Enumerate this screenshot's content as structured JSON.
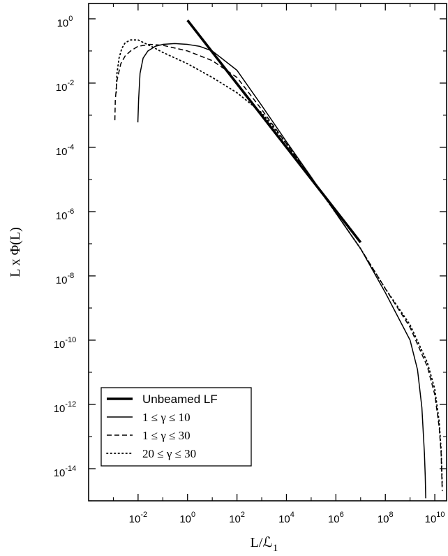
{
  "chart_data": {
    "type": "line",
    "title": "",
    "xlabel": "L/ℒ",
    "xlabel_subscript": "1",
    "ylabel": "L x Φ(L)",
    "x_scale": "log",
    "y_scale": "log",
    "xlim": [
      0.0001,
      30000000000.0
    ],
    "ylim": [
      1e-15,
      3
    ],
    "grid": false,
    "legend_position": "bottom-left",
    "x_ticks": [
      {
        "base": "10",
        "exp": "-2",
        "value": 0.01
      },
      {
        "base": "10",
        "exp": "0",
        "value": 1
      },
      {
        "base": "10",
        "exp": "2",
        "value": 100
      },
      {
        "base": "10",
        "exp": "4",
        "value": 10000
      },
      {
        "base": "10",
        "exp": "6",
        "value": 1000000
      },
      {
        "base": "10",
        "exp": "8",
        "value": 100000000
      },
      {
        "base": "10",
        "exp": "10",
        "value": 10000000000
      }
    ],
    "y_ticks": [
      {
        "base": "10",
        "exp": "0",
        "value": 1
      },
      {
        "base": "10",
        "exp": "-2",
        "value": 0.01
      },
      {
        "base": "10",
        "exp": "-4",
        "value": 0.0001
      },
      {
        "base": "10",
        "exp": "-6",
        "value": 1e-06
      },
      {
        "base": "10",
        "exp": "-8",
        "value": 1e-08
      },
      {
        "base": "10",
        "exp": "-10",
        "value": 1e-10
      },
      {
        "base": "10",
        "exp": "-12",
        "value": 1e-12
      },
      {
        "base": "10",
        "exp": "-14",
        "value": 1e-14
      }
    ],
    "series": [
      {
        "name": "Unbeamed LF",
        "style": "solid-thick",
        "color": "#000000",
        "x": [
          1,
          10000000
        ],
        "y": [
          0.9,
          1.1e-07
        ]
      },
      {
        "name": "1 ≤ γ ≤ 10",
        "style": "solid",
        "color": "#000000",
        "x": [
          0.0098,
          0.0105,
          0.012,
          0.016,
          0.025,
          0.05,
          0.1,
          0.3,
          1,
          3,
          10,
          100,
          1000,
          10000,
          100000,
          1000000,
          10000000,
          100000000,
          1000000000,
          2000000000,
          3000000000,
          3800000000,
          4100000000,
          4300000000
        ],
        "y": [
          0.0006,
          0.003,
          0.02,
          0.06,
          0.1,
          0.14,
          0.16,
          0.17,
          0.16,
          0.14,
          0.1,
          0.025,
          0.002,
          0.00015,
          1.2e-05,
          9e-07,
          7e-08,
          3e-09,
          1e-10,
          1.2e-11,
          8e-13,
          3e-14,
          6e-15,
          1.2e-15
        ]
      },
      {
        "name": "1 ≤ γ ≤ 30",
        "style": "dashed",
        "color": "#000000",
        "x": [
          0.00115,
          0.0012,
          0.0014,
          0.002,
          0.003,
          0.005,
          0.01,
          0.03,
          0.1,
          1,
          10,
          100,
          1000,
          10000,
          100000,
          1000000,
          10000000,
          100000000,
          1000000000,
          5000000000,
          10000000000,
          15000000000,
          18000000000,
          20000000000
        ],
        "y": [
          0.0007,
          0.003,
          0.012,
          0.04,
          0.07,
          0.1,
          0.14,
          0.16,
          0.15,
          0.1,
          0.05,
          0.015,
          0.0015,
          0.00013,
          1.1e-05,
          9e-07,
          7e-08,
          4e-09,
          2.5e-10,
          1.5e-11,
          2e-12,
          2e-13,
          3e-14,
          2e-15
        ]
      },
      {
        "name": "20 ≤ γ ≤ 30",
        "style": "dotted",
        "color": "#000000",
        "x": [
          0.0013,
          0.0014,
          0.0017,
          0.0022,
          0.003,
          0.005,
          0.01,
          0.02,
          0.05,
          0.1,
          1,
          10,
          100,
          1000,
          10000,
          100000,
          1000000,
          10000000,
          100000000,
          1000000000,
          5000000000,
          10000000000,
          15000000000,
          18000000000,
          20000000000
        ],
        "y": [
          0.005,
          0.02,
          0.06,
          0.12,
          0.18,
          0.22,
          0.22,
          0.17,
          0.12,
          0.09,
          0.04,
          0.015,
          0.005,
          0.0012,
          0.00013,
          1.1e-05,
          9e-07,
          7e-08,
          4e-09,
          3e-10,
          2e-11,
          3e-12,
          3e-13,
          4e-14,
          3e-15
        ]
      }
    ],
    "legend": [
      {
        "label": "Unbeamed LF",
        "style": "solid-thick",
        "font": "sans"
      },
      {
        "label": "1 ≤ γ ≤ 10",
        "style": "solid",
        "font": "serif"
      },
      {
        "label": "1 ≤ γ ≤ 30",
        "style": "dashed",
        "font": "serif"
      },
      {
        "label": "20 ≤ γ ≤ 30",
        "style": "dotted",
        "font": "serif"
      }
    ]
  }
}
